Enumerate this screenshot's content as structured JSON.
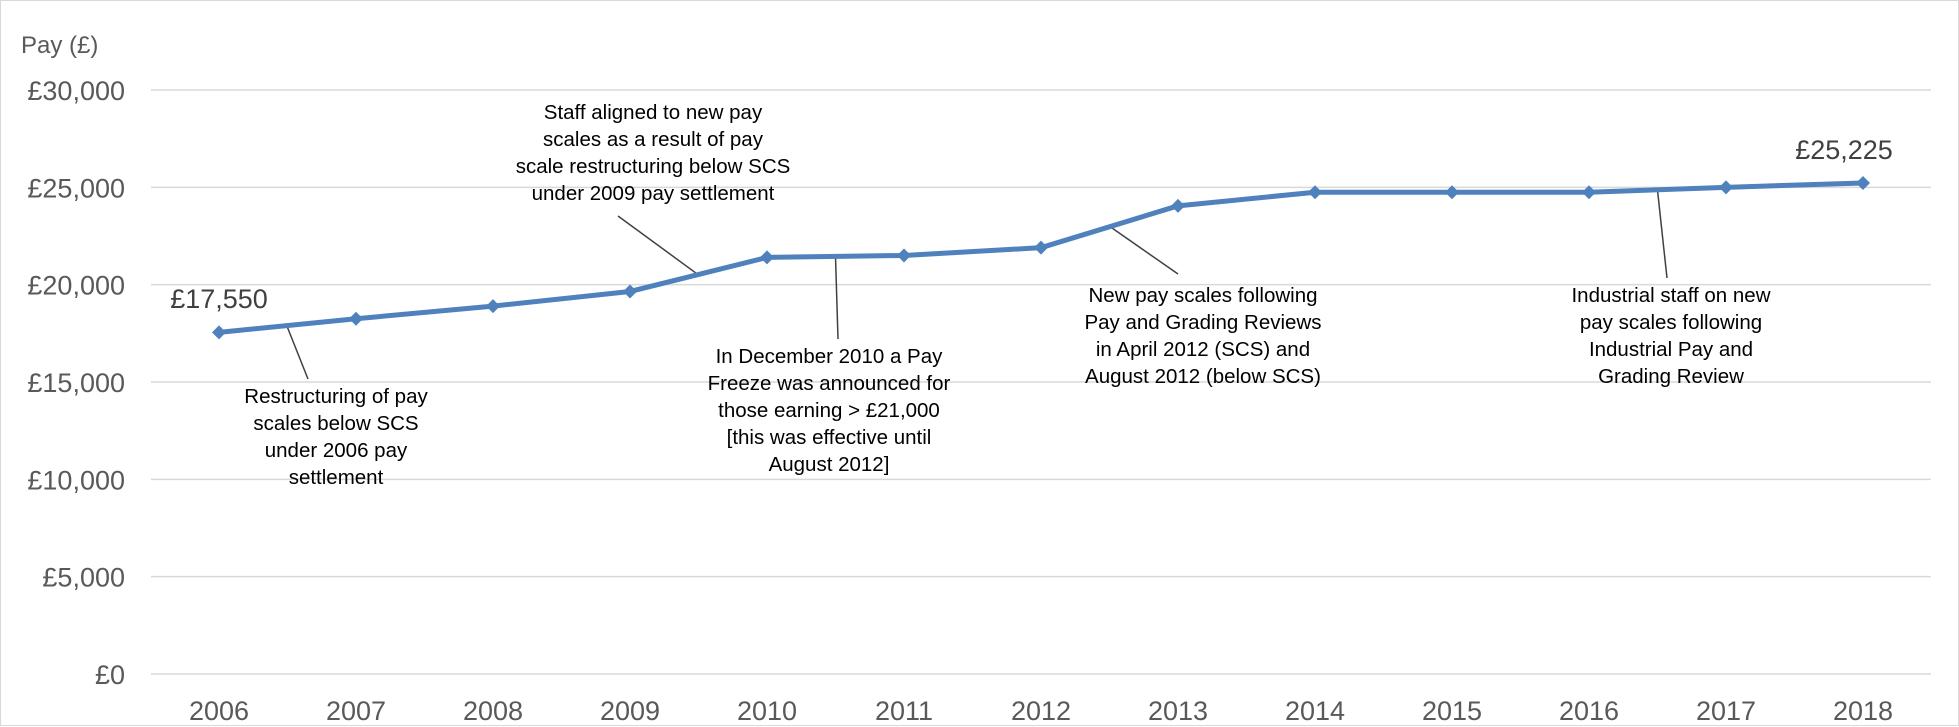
{
  "chart_data": {
    "type": "line",
    "ylabel": "Pay (£)",
    "xlabel": "",
    "x": [
      "2006",
      "2007",
      "2008",
      "2009",
      "2010",
      "2011",
      "2012",
      "2013",
      "2014",
      "2015",
      "2016",
      "2017",
      "2018"
    ],
    "series": [
      {
        "values": [
          17550,
          18250,
          18900,
          19650,
          21400,
          21500,
          21900,
          24050,
          24750,
          24750,
          24750,
          25000,
          25225
        ]
      }
    ],
    "ylim": [
      0,
      30000
    ],
    "yticks": [
      0,
      5000,
      10000,
      15000,
      20000,
      25000,
      30000
    ],
    "ytick_labels": [
      "£0",
      "£5,000",
      "£10,000",
      "£15,000",
      "£20,000",
      "£25,000",
      "£30,000"
    ],
    "grid": "horizontal",
    "legend": "none",
    "colors": {
      "line": "#4f81bd",
      "grid": "#d9d9d9",
      "text": "#595959"
    },
    "data_labels": [
      {
        "x": "2006",
        "text": "£17,550"
      },
      {
        "x": "2018",
        "text": "£25,225"
      }
    ],
    "annotations": [
      {
        "x": 2006.5,
        "y": 17800,
        "lines": [
          "Restructuring of pay",
          "scales below SCS",
          "under 2006 pay",
          "settlement"
        ]
      },
      {
        "x": 2009.5,
        "y": 20500,
        "lines": [
          "Staff aligned to new pay",
          "scales as a result of pay",
          "scale restructuring below SCS",
          "under 2009 pay settlement"
        ]
      },
      {
        "x": 2010.5,
        "y": 21450,
        "lines": [
          "In December 2010 a Pay",
          "Freeze was announced for",
          "those earning > £21,000",
          "[this was effective until",
          "August 2012]"
        ]
      },
      {
        "x": 2012.5,
        "y": 23000,
        "lines": [
          "New pay scales following",
          "Pay and Grading Reviews",
          "in April 2012 (SCS) and",
          "August 2012 (below SCS)"
        ]
      },
      {
        "x": 2016.5,
        "y": 24850,
        "lines": [
          "Industrial staff on new",
          "pay scales following",
          "Industrial Pay and",
          "Grading Review"
        ]
      }
    ]
  }
}
